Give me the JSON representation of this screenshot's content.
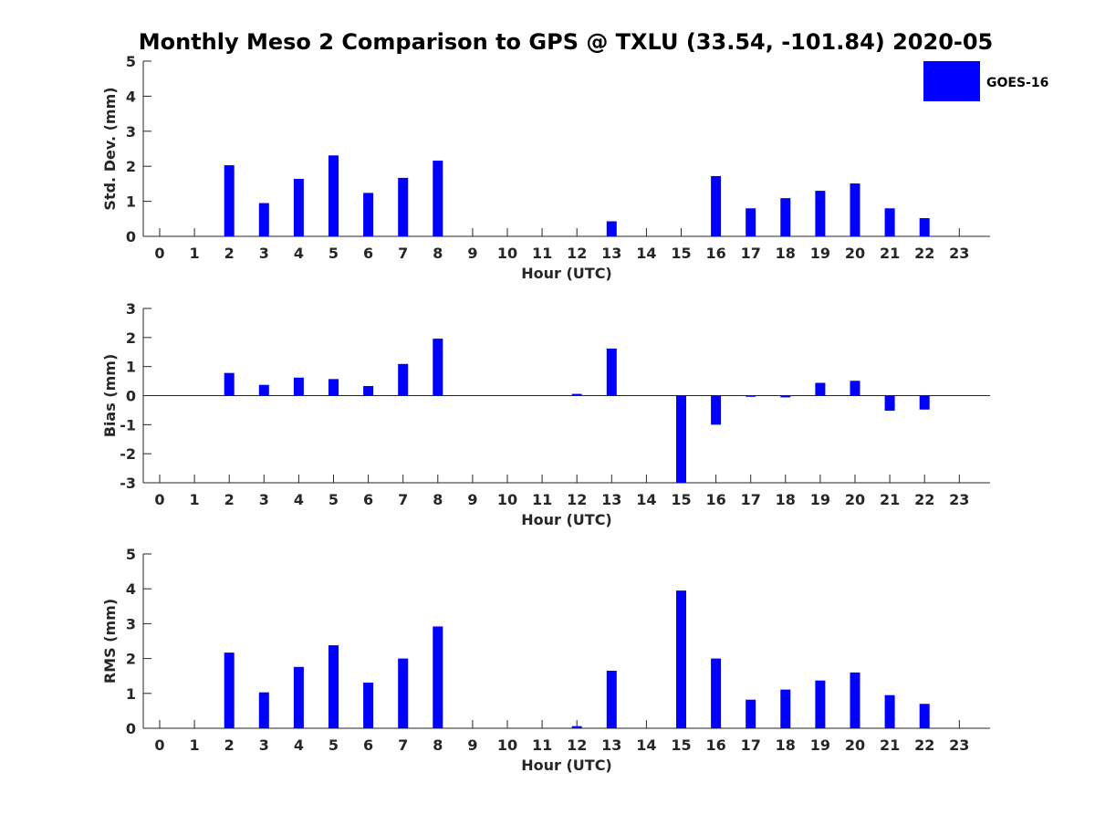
{
  "title": "Monthly Meso 2 Comparison to GPS @ TXLU (33.54, -101.84) 2020-05",
  "bar_color": "#0000ff",
  "chart_data": [
    {
      "type": "bar",
      "id": "std",
      "ylabel": "Std. Dev. (mm)",
      "xlabel": "Hour (UTC)",
      "ylim": [
        0,
        5
      ],
      "yticks": [
        0,
        1,
        2,
        3,
        4,
        5
      ],
      "categories": [
        "0",
        "1",
        "2",
        "3",
        "4",
        "5",
        "6",
        "7",
        "8",
        "9",
        "10",
        "11",
        "12",
        "13",
        "14",
        "15",
        "16",
        "17",
        "18",
        "19",
        "20",
        "21",
        "22",
        "23"
      ],
      "series": [
        {
          "name": "GOES-16",
          "values": [
            null,
            null,
            2.03,
            0.95,
            1.64,
            2.31,
            1.24,
            1.67,
            2.16,
            null,
            null,
            null,
            null,
            0.43,
            null,
            null,
            1.72,
            0.8,
            1.09,
            1.3,
            1.51,
            0.8,
            0.52,
            null
          ]
        }
      ]
    },
    {
      "type": "bar",
      "id": "bias",
      "ylabel": "Bias (mm)",
      "xlabel": "Hour (UTC)",
      "ylim": [
        -3,
        3
      ],
      "yticks": [
        -3,
        -2,
        -1,
        0,
        1,
        2,
        3
      ],
      "categories": [
        "0",
        "1",
        "2",
        "3",
        "4",
        "5",
        "6",
        "7",
        "8",
        "9",
        "10",
        "11",
        "12",
        "13",
        "14",
        "15",
        "16",
        "17",
        "18",
        "19",
        "20",
        "21",
        "22",
        "23"
      ],
      "series": [
        {
          "name": "GOES-16",
          "values": [
            null,
            null,
            0.78,
            0.37,
            0.62,
            0.57,
            0.33,
            1.09,
            1.96,
            null,
            null,
            null,
            0.06,
            1.62,
            null,
            -3.0,
            -1.0,
            -0.04,
            -0.06,
            0.44,
            0.51,
            -0.52,
            -0.48,
            null
          ]
        }
      ]
    },
    {
      "type": "bar",
      "id": "rms",
      "ylabel": "RMS (mm)",
      "xlabel": "Hour (UTC)",
      "ylim": [
        0,
        5
      ],
      "yticks": [
        0,
        1,
        2,
        3,
        4,
        5
      ],
      "categories": [
        "0",
        "1",
        "2",
        "3",
        "4",
        "5",
        "6",
        "7",
        "8",
        "9",
        "10",
        "11",
        "12",
        "13",
        "14",
        "15",
        "16",
        "17",
        "18",
        "19",
        "20",
        "21",
        "22",
        "23"
      ],
      "series": [
        {
          "name": "GOES-16",
          "values": [
            null,
            null,
            2.17,
            1.03,
            1.76,
            2.38,
            1.31,
            2.0,
            2.92,
            null,
            null,
            null,
            0.06,
            1.65,
            null,
            3.95,
            2.0,
            0.82,
            1.11,
            1.37,
            1.6,
            0.95,
            0.7,
            null
          ]
        }
      ]
    }
  ],
  "legend": {
    "label": "GOES-16",
    "position": "top-right"
  }
}
